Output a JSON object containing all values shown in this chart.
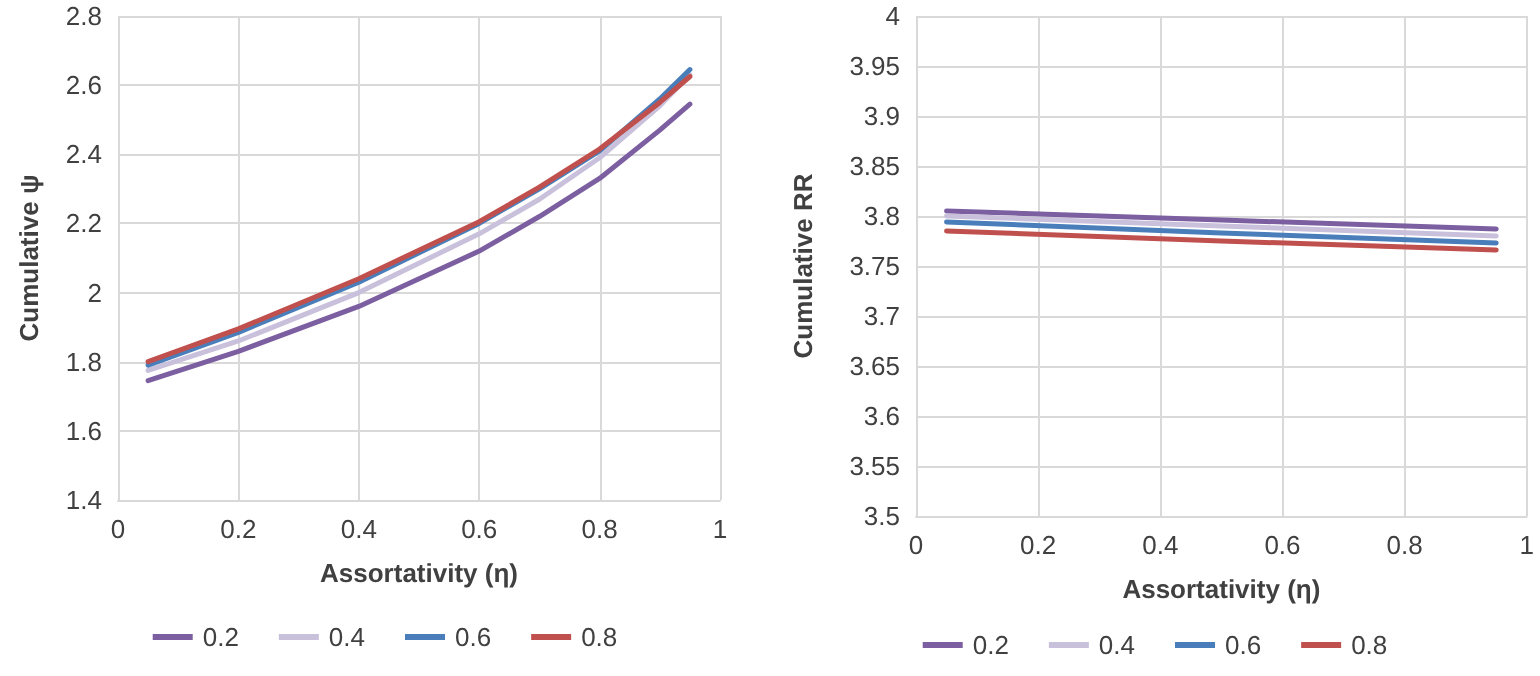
{
  "chart_data": [
    {
      "type": "line",
      "xlabel": "Assortativity (η)",
      "ylabel": "Cumulative ψ",
      "x": [
        0.05,
        0.2,
        0.4,
        0.6,
        0.7,
        0.8,
        0.9,
        0.95
      ],
      "series": [
        {
          "name": "0.2",
          "color": "#7c5fa0",
          "values": [
            1.745,
            1.83,
            1.96,
            2.12,
            2.22,
            2.33,
            2.47,
            2.545
          ]
        },
        {
          "name": "0.4",
          "color": "#c9c0dc",
          "values": [
            1.775,
            1.86,
            2.0,
            2.17,
            2.27,
            2.39,
            2.54,
            2.63
          ]
        },
        {
          "name": "0.6",
          "color": "#4a7ebb",
          "values": [
            1.79,
            1.885,
            2.03,
            2.2,
            2.3,
            2.41,
            2.56,
            2.645
          ]
        },
        {
          "name": "0.8",
          "color": "#c0504d",
          "values": [
            1.8,
            1.895,
            2.04,
            2.205,
            2.305,
            2.415,
            2.55,
            2.625
          ]
        }
      ],
      "xlim": [
        0,
        1
      ],
      "xticks": [
        0,
        0.2,
        0.4,
        0.6,
        0.8,
        1
      ],
      "ylim": [
        1.4,
        2.8
      ],
      "yticks": [
        1.4,
        1.6,
        1.8,
        2,
        2.2,
        2.4,
        2.6,
        2.8
      ],
      "grid": true,
      "legend": "bottom",
      "marker": "none",
      "line_style": "solid"
    },
    {
      "type": "line",
      "xlabel": "Assortativity (η)",
      "ylabel": "Cumulative RR",
      "x": [
        0.05,
        0.5,
        0.95
      ],
      "series": [
        {
          "name": "0.2",
          "color": "#7c5fa0",
          "values": [
            3.805,
            3.796,
            3.787
          ]
        },
        {
          "name": "0.4",
          "color": "#c9c0dc",
          "values": [
            3.8,
            3.79,
            3.78
          ]
        },
        {
          "name": "0.6",
          "color": "#4a7ebb",
          "values": [
            3.794,
            3.783,
            3.773
          ]
        },
        {
          "name": "0.8",
          "color": "#c0504d",
          "values": [
            3.785,
            3.775,
            3.766
          ]
        }
      ],
      "xlim": [
        0,
        1
      ],
      "xticks": [
        0,
        0.2,
        0.4,
        0.6,
        0.8,
        1
      ],
      "ylim": [
        3.5,
        4
      ],
      "yticks": [
        3.5,
        3.55,
        3.6,
        3.65,
        3.7,
        3.75,
        3.8,
        3.85,
        3.9,
        3.95,
        4
      ],
      "grid": true,
      "legend": "bottom",
      "marker": "none",
      "line_style": "solid"
    }
  ]
}
